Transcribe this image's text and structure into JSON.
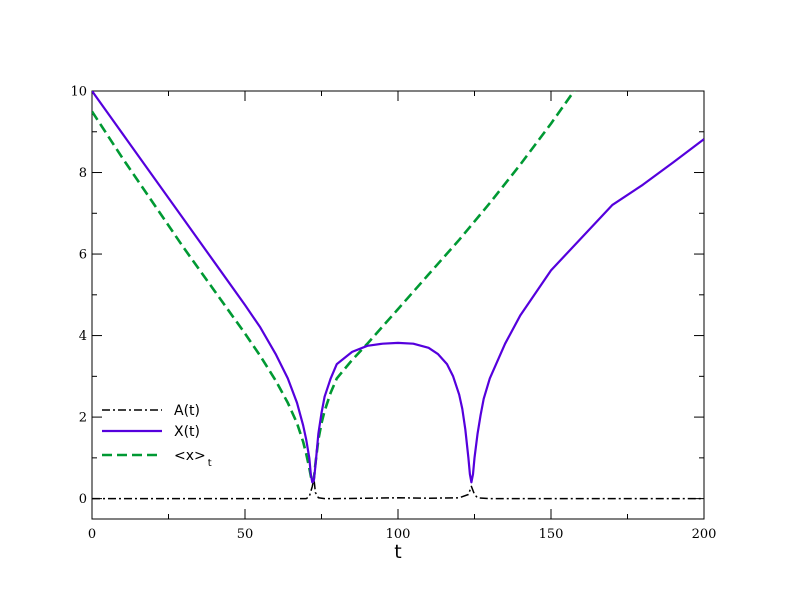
{
  "chart_data": {
    "type": "line",
    "title": "",
    "xlabel": "t",
    "ylabel": "",
    "xlim": [
      0,
      200
    ],
    "ylim": [
      -0.5,
      10
    ],
    "grid": false,
    "legend_position": "bottom-left",
    "x_ticks": [
      {
        "value": 0,
        "label": "0"
      },
      {
        "value": 50,
        "label": "50"
      },
      {
        "value": 100,
        "label": "100"
      },
      {
        "value": 150,
        "label": "150"
      },
      {
        "value": 200,
        "label": "200"
      }
    ],
    "y_ticks": [
      {
        "value": 0,
        "label": "0"
      },
      {
        "value": 2,
        "label": "2"
      },
      {
        "value": 4,
        "label": "4"
      },
      {
        "value": 6,
        "label": "6"
      },
      {
        "value": 8,
        "label": "8"
      },
      {
        "value": 10,
        "label": "10"
      }
    ],
    "series": [
      {
        "name": "A(t)",
        "color": "#000000",
        "style": "dash-dot",
        "x": [
          0,
          20,
          40,
          60,
          70,
          71,
          72,
          72.5,
          73,
          74,
          76,
          80,
          90,
          100,
          110,
          120,
          123,
          124,
          125,
          126,
          130,
          150,
          170,
          200
        ],
        "y": [
          0,
          0,
          0,
          0,
          0,
          0.05,
          0.3,
          0.5,
          0.15,
          0.02,
          0,
          0,
          0.01,
          0.02,
          0.01,
          0.02,
          0.1,
          0.3,
          0.1,
          0.02,
          0,
          0,
          0,
          0
        ]
      },
      {
        "name": "X(t)",
        "color": "#5500dd",
        "style": "solid",
        "x": [
          0,
          10,
          20,
          30,
          40,
          50,
          55,
          60,
          64,
          67,
          69,
          70,
          71,
          71.5,
          72,
          72.5,
          73,
          73.5,
          74,
          75,
          76,
          78,
          80,
          85,
          90,
          95,
          100,
          105,
          110,
          113,
          116,
          118,
          120,
          121,
          122,
          123,
          123.5,
          124,
          124.5,
          125,
          126,
          127,
          128,
          130,
          135,
          140,
          150,
          160,
          170,
          180,
          190,
          200
        ],
        "y": [
          10,
          8.95,
          7.9,
          6.85,
          5.8,
          4.75,
          4.2,
          3.55,
          2.95,
          2.35,
          1.8,
          1.45,
          1.0,
          0.6,
          0.4,
          0.45,
          0.8,
          1.2,
          1.6,
          2.1,
          2.5,
          2.95,
          3.3,
          3.6,
          3.75,
          3.8,
          3.82,
          3.8,
          3.7,
          3.55,
          3.3,
          3.0,
          2.55,
          2.2,
          1.7,
          1.0,
          0.6,
          0.4,
          0.6,
          1.0,
          1.6,
          2.05,
          2.45,
          2.95,
          3.8,
          4.5,
          5.6,
          6.4,
          7.2,
          7.7,
          8.25,
          8.82
        ]
      },
      {
        "name": "<x>",
        "name_subscript": "t",
        "color": "#009933",
        "style": "dashed",
        "x": [
          0,
          10,
          20,
          30,
          40,
          50,
          55,
          60,
          64,
          67,
          69,
          70,
          71,
          71.5,
          72,
          72.5,
          73,
          73.5,
          74,
          75,
          76,
          78,
          80,
          85,
          90,
          100,
          110,
          120,
          130,
          140,
          150,
          158
        ],
        "y": [
          9.5,
          8.35,
          7.25,
          6.15,
          5.1,
          4.05,
          3.5,
          2.9,
          2.35,
          1.85,
          1.4,
          1.1,
          0.75,
          0.55,
          0.4,
          0.5,
          0.85,
          1.15,
          1.45,
          1.85,
          2.15,
          2.6,
          2.95,
          3.4,
          3.8,
          4.65,
          5.5,
          6.35,
          7.25,
          8.2,
          9.2,
          10.05
        ]
      }
    ]
  }
}
